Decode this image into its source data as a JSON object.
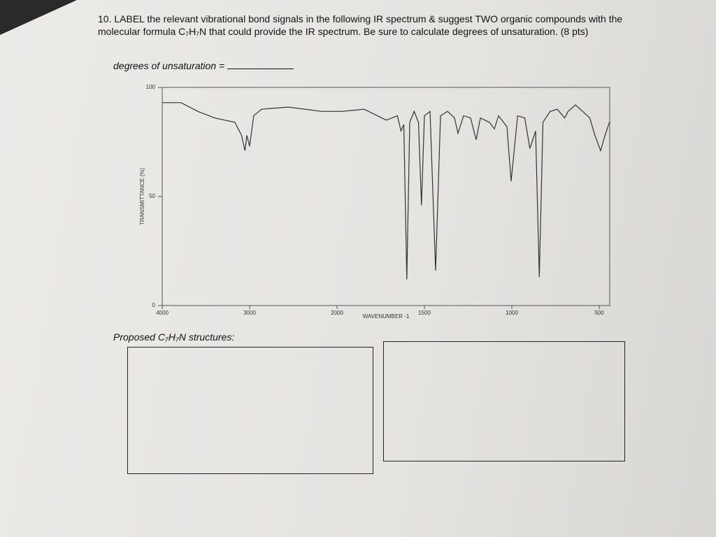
{
  "question": {
    "number": "10.",
    "text": "LABEL the relevant vibrational bond signals in the following IR spectrum & suggest TWO organic compounds with the molecular formula C₇H₇N that could provide the IR spectrum. Be sure to calculate degrees of unsaturation. (8 pts)"
  },
  "unsaturation_label": "degrees of unsaturation =",
  "structures_label": "Proposed C₇H₇N structures:",
  "chart_data": {
    "type": "line",
    "x_label": "WAVENUMBER -1",
    "y_label": "TRANSMITTANCE (%)",
    "color": "#333333",
    "x": [
      4000,
      3785,
      3592,
      3400,
      3169,
      3092,
      3054,
      3031,
      3000,
      2954,
      2863,
      2557,
      2176,
      1971,
      1845,
      1718,
      1655,
      1634,
      1618,
      1601,
      1584,
      1559,
      1534,
      1517,
      1500,
      1468,
      1436,
      1408,
      1368,
      1328,
      1308,
      1276,
      1236,
      1204,
      1180,
      1128,
      1100,
      1076,
      1028,
      1004,
      967,
      926,
      897,
      864,
      843,
      822,
      781,
      740,
      698,
      678,
      636,
      595,
      554,
      525,
      492,
      467,
      442
    ],
    "values": [
      93,
      93,
      89,
      86,
      84,
      78,
      71,
      78,
      73,
      87,
      90,
      91,
      89,
      89,
      90,
      85,
      87,
      80,
      83,
      12,
      84,
      89,
      84,
      46,
      87,
      89,
      16,
      87,
      89,
      86,
      79,
      87,
      86,
      76,
      86,
      84,
      81,
      87,
      82,
      57,
      87,
      86,
      72,
      80,
      13,
      84,
      89,
      90,
      86,
      89,
      92,
      89,
      86,
      78,
      71,
      78,
      84
    ],
    "xlim": [
      4000,
      440
    ],
    "ylim": [
      0,
      100
    ],
    "xticks": [
      4000,
      3000,
      2000,
      1500,
      1000,
      500
    ],
    "yticks": [
      0,
      50,
      100
    ]
  }
}
